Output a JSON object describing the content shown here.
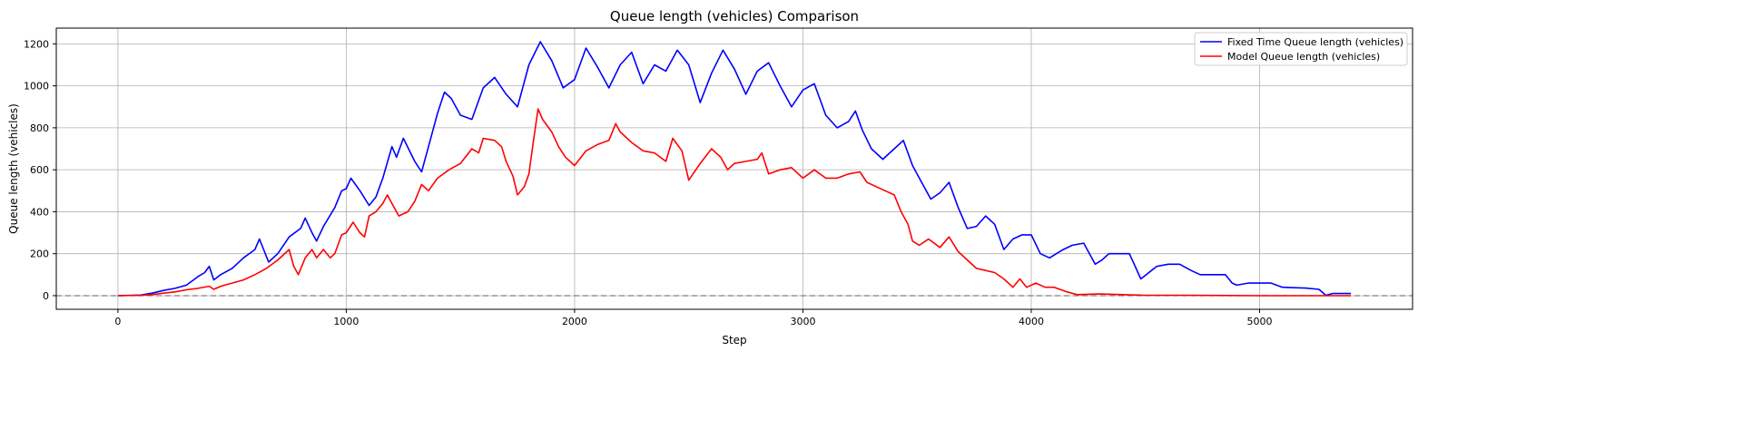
{
  "chart_data": {
    "type": "line",
    "title": "Queue length (vehicles) Comparison",
    "xlabel": "Step",
    "ylabel": "Queue length (vehicles)",
    "xlim": [
      -270,
      5670
    ],
    "ylim": [
      -65,
      1275
    ],
    "xticks": [
      0,
      1000,
      2000,
      3000,
      4000,
      5000
    ],
    "yticks": [
      0,
      200,
      400,
      600,
      800,
      1000,
      1200
    ],
    "grid": true,
    "legend_position": "top-right",
    "reference_line": {
      "y": 0,
      "style": "dashed",
      "color": "#808080"
    },
    "series": [
      {
        "name": "Fixed Time Queue length (vehicles)",
        "color": "#0000ff",
        "points": [
          [
            0,
            0
          ],
          [
            100,
            3
          ],
          [
            150,
            12
          ],
          [
            200,
            25
          ],
          [
            250,
            35
          ],
          [
            300,
            50
          ],
          [
            350,
            90
          ],
          [
            380,
            110
          ],
          [
            400,
            140
          ],
          [
            420,
            75
          ],
          [
            450,
            100
          ],
          [
            500,
            130
          ],
          [
            550,
            180
          ],
          [
            600,
            220
          ],
          [
            620,
            270
          ],
          [
            660,
            160
          ],
          [
            700,
            200
          ],
          [
            750,
            280
          ],
          [
            800,
            320
          ],
          [
            820,
            370
          ],
          [
            850,
            300
          ],
          [
            870,
            260
          ],
          [
            900,
            330
          ],
          [
            950,
            420
          ],
          [
            980,
            500
          ],
          [
            1000,
            510
          ],
          [
            1020,
            560
          ],
          [
            1060,
            500
          ],
          [
            1100,
            430
          ],
          [
            1130,
            470
          ],
          [
            1160,
            560
          ],
          [
            1200,
            710
          ],
          [
            1220,
            660
          ],
          [
            1250,
            750
          ],
          [
            1300,
            640
          ],
          [
            1330,
            590
          ],
          [
            1360,
            710
          ],
          [
            1400,
            870
          ],
          [
            1430,
            970
          ],
          [
            1460,
            940
          ],
          [
            1500,
            860
          ],
          [
            1550,
            840
          ],
          [
            1600,
            990
          ],
          [
            1650,
            1040
          ],
          [
            1700,
            960
          ],
          [
            1750,
            900
          ],
          [
            1800,
            1100
          ],
          [
            1850,
            1210
          ],
          [
            1900,
            1120
          ],
          [
            1950,
            990
          ],
          [
            2000,
            1030
          ],
          [
            2050,
            1180
          ],
          [
            2100,
            1090
          ],
          [
            2150,
            990
          ],
          [
            2200,
            1100
          ],
          [
            2250,
            1160
          ],
          [
            2300,
            1010
          ],
          [
            2350,
            1100
          ],
          [
            2400,
            1070
          ],
          [
            2450,
            1170
          ],
          [
            2500,
            1100
          ],
          [
            2550,
            920
          ],
          [
            2600,
            1060
          ],
          [
            2650,
            1170
          ],
          [
            2700,
            1080
          ],
          [
            2750,
            960
          ],
          [
            2800,
            1070
          ],
          [
            2850,
            1110
          ],
          [
            2900,
            1000
          ],
          [
            2950,
            900
          ],
          [
            3000,
            980
          ],
          [
            3050,
            1010
          ],
          [
            3080,
            920
          ],
          [
            3100,
            860
          ],
          [
            3150,
            800
          ],
          [
            3200,
            830
          ],
          [
            3230,
            880
          ],
          [
            3260,
            790
          ],
          [
            3300,
            700
          ],
          [
            3350,
            650
          ],
          [
            3400,
            700
          ],
          [
            3440,
            740
          ],
          [
            3480,
            620
          ],
          [
            3520,
            540
          ],
          [
            3560,
            460
          ],
          [
            3600,
            490
          ],
          [
            3640,
            540
          ],
          [
            3680,
            420
          ],
          [
            3720,
            320
          ],
          [
            3760,
            330
          ],
          [
            3800,
            380
          ],
          [
            3840,
            340
          ],
          [
            3880,
            220
          ],
          [
            3920,
            270
          ],
          [
            3960,
            290
          ],
          [
            4000,
            290
          ],
          [
            4040,
            200
          ],
          [
            4080,
            180
          ],
          [
            4140,
            220
          ],
          [
            4180,
            240
          ],
          [
            4230,
            250
          ],
          [
            4280,
            150
          ],
          [
            4310,
            170
          ],
          [
            4340,
            200
          ],
          [
            4400,
            200
          ],
          [
            4430,
            200
          ],
          [
            4480,
            80
          ],
          [
            4550,
            140
          ],
          [
            4600,
            150
          ],
          [
            4650,
            150
          ],
          [
            4700,
            120
          ],
          [
            4740,
            100
          ],
          [
            4800,
            100
          ],
          [
            4850,
            100
          ],
          [
            4880,
            60
          ],
          [
            4900,
            50
          ],
          [
            4950,
            60
          ],
          [
            5000,
            60
          ],
          [
            5050,
            60
          ],
          [
            5100,
            40
          ],
          [
            5150,
            38
          ],
          [
            5200,
            36
          ],
          [
            5260,
            30
          ],
          [
            5290,
            2
          ],
          [
            5320,
            10
          ],
          [
            5400,
            10
          ]
        ]
      },
      {
        "name": "Model Queue length (vehicles)",
        "color": "#ff0000",
        "points": [
          [
            0,
            0
          ],
          [
            100,
            2
          ],
          [
            150,
            5
          ],
          [
            200,
            12
          ],
          [
            250,
            18
          ],
          [
            300,
            28
          ],
          [
            350,
            35
          ],
          [
            400,
            45
          ],
          [
            420,
            30
          ],
          [
            450,
            45
          ],
          [
            500,
            60
          ],
          [
            550,
            75
          ],
          [
            600,
            100
          ],
          [
            650,
            130
          ],
          [
            700,
            170
          ],
          [
            750,
            220
          ],
          [
            770,
            140
          ],
          [
            790,
            100
          ],
          [
            820,
            180
          ],
          [
            850,
            220
          ],
          [
            870,
            180
          ],
          [
            900,
            220
          ],
          [
            930,
            180
          ],
          [
            950,
            200
          ],
          [
            980,
            290
          ],
          [
            1000,
            300
          ],
          [
            1030,
            350
          ],
          [
            1060,
            300
          ],
          [
            1080,
            280
          ],
          [
            1100,
            380
          ],
          [
            1130,
            400
          ],
          [
            1160,
            440
          ],
          [
            1180,
            480
          ],
          [
            1200,
            440
          ],
          [
            1230,
            380
          ],
          [
            1270,
            400
          ],
          [
            1300,
            450
          ],
          [
            1330,
            530
          ],
          [
            1360,
            500
          ],
          [
            1400,
            560
          ],
          [
            1450,
            600
          ],
          [
            1500,
            630
          ],
          [
            1550,
            700
          ],
          [
            1580,
            680
          ],
          [
            1600,
            750
          ],
          [
            1650,
            740
          ],
          [
            1680,
            710
          ],
          [
            1700,
            640
          ],
          [
            1730,
            570
          ],
          [
            1750,
            480
          ],
          [
            1780,
            520
          ],
          [
            1800,
            580
          ],
          [
            1820,
            740
          ],
          [
            1840,
            890
          ],
          [
            1860,
            840
          ],
          [
            1900,
            780
          ],
          [
            1930,
            710
          ],
          [
            1960,
            660
          ],
          [
            2000,
            620
          ],
          [
            2050,
            690
          ],
          [
            2100,
            720
          ],
          [
            2150,
            740
          ],
          [
            2180,
            820
          ],
          [
            2200,
            780
          ],
          [
            2250,
            730
          ],
          [
            2300,
            690
          ],
          [
            2350,
            680
          ],
          [
            2400,
            640
          ],
          [
            2430,
            750
          ],
          [
            2470,
            690
          ],
          [
            2500,
            550
          ],
          [
            2550,
            630
          ],
          [
            2600,
            700
          ],
          [
            2640,
            660
          ],
          [
            2670,
            600
          ],
          [
            2700,
            630
          ],
          [
            2750,
            640
          ],
          [
            2800,
            650
          ],
          [
            2820,
            680
          ],
          [
            2850,
            580
          ],
          [
            2900,
            600
          ],
          [
            2950,
            610
          ],
          [
            3000,
            560
          ],
          [
            3050,
            600
          ],
          [
            3100,
            560
          ],
          [
            3150,
            560
          ],
          [
            3200,
            580
          ],
          [
            3250,
            590
          ],
          [
            3280,
            540
          ],
          [
            3320,
            520
          ],
          [
            3360,
            500
          ],
          [
            3400,
            480
          ],
          [
            3430,
            400
          ],
          [
            3460,
            340
          ],
          [
            3480,
            260
          ],
          [
            3510,
            240
          ],
          [
            3550,
            270
          ],
          [
            3600,
            230
          ],
          [
            3640,
            280
          ],
          [
            3680,
            210
          ],
          [
            3720,
            170
          ],
          [
            3760,
            130
          ],
          [
            3800,
            120
          ],
          [
            3840,
            110
          ],
          [
            3880,
            80
          ],
          [
            3920,
            40
          ],
          [
            3950,
            80
          ],
          [
            3980,
            40
          ],
          [
            4020,
            60
          ],
          [
            4060,
            40
          ],
          [
            4100,
            40
          ],
          [
            4150,
            20
          ],
          [
            4200,
            5
          ],
          [
            4300,
            8
          ],
          [
            4400,
            5
          ],
          [
            4500,
            2
          ],
          [
            4650,
            2
          ],
          [
            4800,
            1
          ],
          [
            5000,
            0
          ],
          [
            5400,
            0
          ]
        ]
      }
    ]
  }
}
